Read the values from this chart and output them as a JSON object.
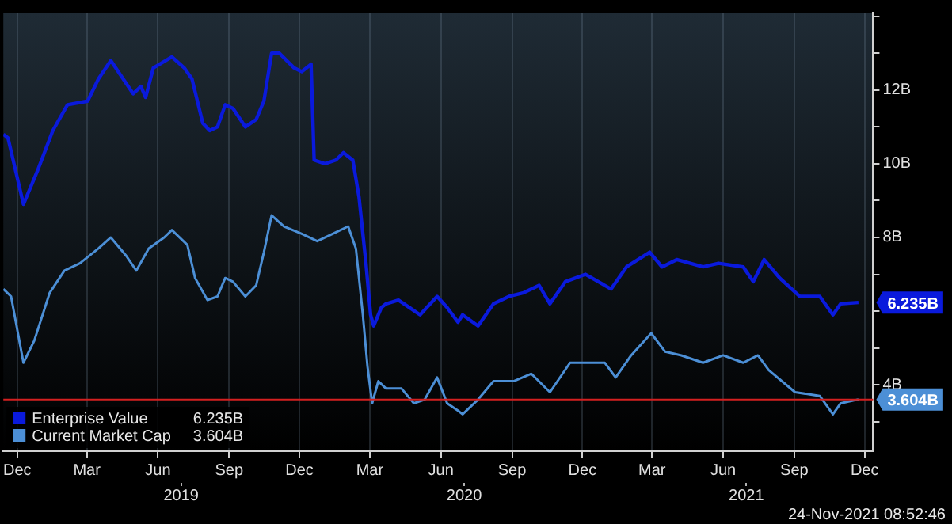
{
  "chart_data": {
    "type": "line",
    "xlim": [
      "2018-11-13",
      "2021-12-12"
    ],
    "xticks": [
      {
        "value": "2018-12-01",
        "label": "Dec"
      },
      {
        "value": "2019-03-01",
        "label": "Mar"
      },
      {
        "value": "2019-06-01",
        "label": "Jun"
      },
      {
        "value": "2019-09-01",
        "label": "Sep"
      },
      {
        "value": "2019-12-01",
        "label": "Dec"
      },
      {
        "value": "2020-03-01",
        "label": "Mar"
      },
      {
        "value": "2020-06-01",
        "label": "Jun"
      },
      {
        "value": "2020-09-01",
        "label": "Sep"
      },
      {
        "value": "2020-12-01",
        "label": "Dec"
      },
      {
        "value": "2021-03-01",
        "label": "Mar"
      },
      {
        "value": "2021-06-01",
        "label": "Jun"
      },
      {
        "value": "2021-09-01",
        "label": "Sep"
      },
      {
        "value": "2021-12-01",
        "label": "Dec"
      }
    ],
    "x2lim": [
      "2018-11-13",
      "2021-12-12"
    ],
    "x2ticks": [
      {
        "value": "2019-07-01",
        "label": "2019"
      },
      {
        "value": "2020-07-01",
        "label": "2020"
      },
      {
        "value": "2021-07-01",
        "label": "2021"
      }
    ],
    "ylim": [
      2.2,
      14.1
    ],
    "yticks": [
      {
        "value": 3,
        "label": null
      },
      {
        "value": 4,
        "label": "4B"
      },
      {
        "value": 5,
        "label": null
      },
      {
        "value": 6,
        "label": null
      },
      {
        "value": 7,
        "label": null
      },
      {
        "value": 8,
        "label": "8B"
      },
      {
        "value": 9,
        "label": null
      },
      {
        "value": 10,
        "label": "10B"
      },
      {
        "value": 11,
        "label": null
      },
      {
        "value": 12,
        "label": "12B"
      },
      {
        "value": 13,
        "label": null
      },
      {
        "value": 14,
        "label": null
      }
    ],
    "grid": "x",
    "legend": "bottom left",
    "marker": "none",
    "ref_lines": [
      {
        "axis": "y",
        "value": 3.604,
        "color": "#d42020"
      }
    ],
    "annotations": [
      "24-Nov-2021 08:52:46"
    ],
    "series": [
      {
        "name": "Enterprise Value",
        "color": "#0a1adc",
        "x": [
          "2018-11-13",
          "2018-11-19",
          "2018-12-09",
          "2018-12-27",
          "2019-01-16",
          "2019-02-04",
          "2019-03-02",
          "2019-03-16",
          "2019-04-01",
          "2019-04-17",
          "2019-04-30",
          "2019-05-10",
          "2019-05-16",
          "2019-05-26",
          "2019-06-19",
          "2019-07-05",
          "2019-07-15",
          "2019-07-29",
          "2019-08-07",
          "2019-08-17",
          "2019-08-27",
          "2019-09-06",
          "2019-09-22",
          "2019-10-06",
          "2019-10-16",
          "2019-10-26",
          "2019-11-05",
          "2019-11-24",
          "2019-12-04",
          "2019-12-16",
          "2019-12-20",
          "2020-01-03",
          "2020-01-17",
          "2020-01-27",
          "2020-02-08",
          "2020-02-16",
          "2020-02-25",
          "2020-03-02",
          "2020-03-06",
          "2020-03-16",
          "2020-03-22",
          "2020-04-07",
          "2020-04-21",
          "2020-05-05",
          "2020-05-27",
          "2020-06-09",
          "2020-06-23",
          "2020-06-29",
          "2020-07-19",
          "2020-08-08",
          "2020-08-28",
          "2020-09-16",
          "2020-10-06",
          "2020-10-20",
          "2020-11-09",
          "2020-12-05",
          "2021-01-07",
          "2021-01-27",
          "2021-02-26",
          "2021-03-14",
          "2021-04-02",
          "2021-05-06",
          "2021-05-26",
          "2021-06-27",
          "2021-07-10",
          "2021-07-24",
          "2021-08-13",
          "2021-09-08",
          "2021-10-04",
          "2021-10-21",
          "2021-10-31",
          "2021-11-23"
        ],
        "values": [
          10.8,
          10.7,
          8.9,
          9.8,
          10.9,
          11.6,
          11.7,
          12.3,
          12.8,
          12.3,
          11.9,
          12.1,
          11.8,
          12.6,
          12.9,
          12.6,
          12.3,
          11.1,
          10.9,
          11.0,
          11.6,
          11.5,
          11.0,
          11.2,
          11.7,
          13.0,
          13.0,
          12.6,
          12.5,
          12.7,
          10.1,
          10.0,
          10.1,
          10.3,
          10.1,
          9.1,
          7.3,
          5.9,
          5.6,
          6.1,
          6.2,
          6.3,
          6.1,
          5.9,
          6.4,
          6.1,
          5.7,
          5.9,
          5.6,
          6.2,
          6.4,
          6.5,
          6.7,
          6.2,
          6.8,
          7.0,
          6.6,
          7.2,
          7.6,
          7.2,
          7.4,
          7.2,
          7.3,
          7.2,
          6.8,
          7.4,
          6.9,
          6.4,
          6.4,
          5.9,
          6.2,
          6.235
        ],
        "value_labels": [
          null,
          null,
          null,
          null,
          null,
          null,
          null,
          null,
          null,
          null,
          null,
          null,
          null,
          null,
          null,
          null,
          null,
          null,
          null,
          null,
          null,
          null,
          null,
          null,
          null,
          null,
          null,
          null,
          null,
          null,
          null,
          null,
          null,
          null,
          null,
          null,
          null,
          null,
          null,
          null,
          null,
          null,
          null,
          null,
          null,
          null,
          null,
          null,
          null,
          null,
          null,
          null,
          null,
          null,
          null,
          null,
          null,
          null,
          null,
          null,
          null,
          null,
          null,
          null,
          null,
          null,
          null,
          null,
          null,
          null,
          null,
          "6.235B"
        ]
      },
      {
        "name": "Current Market Cap",
        "color": "#4c8fd6",
        "x": [
          "2018-11-13",
          "2018-11-23",
          "2018-12-09",
          "2018-12-23",
          "2019-01-12",
          "2019-01-31",
          "2019-02-20",
          "2019-03-16",
          "2019-04-01",
          "2019-04-21",
          "2019-05-04",
          "2019-05-20",
          "2019-06-09",
          "2019-06-19",
          "2019-07-09",
          "2019-07-19",
          "2019-08-04",
          "2019-08-17",
          "2019-08-27",
          "2019-09-06",
          "2019-09-22",
          "2019-10-06",
          "2019-10-16",
          "2019-10-26",
          "2019-11-11",
          "2019-12-04",
          "2019-12-24",
          "2020-01-13",
          "2020-02-02",
          "2020-02-12",
          "2020-02-21",
          "2020-02-27",
          "2020-03-04",
          "2020-03-12",
          "2020-03-22",
          "2020-04-11",
          "2020-04-27",
          "2020-05-11",
          "2020-05-27",
          "2020-06-09",
          "2020-06-23",
          "2020-06-29",
          "2020-07-19",
          "2020-08-08",
          "2020-09-03",
          "2020-09-26",
          "2020-10-20",
          "2020-11-15",
          "2020-12-11",
          "2020-12-30",
          "2021-01-13",
          "2021-02-02",
          "2021-02-28",
          "2021-03-18",
          "2021-04-08",
          "2021-05-06",
          "2021-06-01",
          "2021-06-27",
          "2021-07-16",
          "2021-07-30",
          "2021-09-02",
          "2021-10-04",
          "2021-10-21",
          "2021-10-31",
          "2021-11-23"
        ],
        "values": [
          6.6,
          6.4,
          4.6,
          5.2,
          6.5,
          7.1,
          7.3,
          7.7,
          8.0,
          7.5,
          7.1,
          7.7,
          8.0,
          8.2,
          7.8,
          6.9,
          6.3,
          6.4,
          6.9,
          6.8,
          6.4,
          6.7,
          7.6,
          8.6,
          8.3,
          8.1,
          7.9,
          8.1,
          8.3,
          7.7,
          5.9,
          4.5,
          3.5,
          4.1,
          3.9,
          3.9,
          3.5,
          3.6,
          4.2,
          3.5,
          3.3,
          3.2,
          3.6,
          4.1,
          4.1,
          4.3,
          3.8,
          4.6,
          4.6,
          4.6,
          4.2,
          4.8,
          5.4,
          4.9,
          4.8,
          4.6,
          4.8,
          4.6,
          4.8,
          4.4,
          3.8,
          3.7,
          3.2,
          3.5,
          3.604
        ],
        "value_labels": [
          null,
          null,
          null,
          null,
          null,
          null,
          null,
          null,
          null,
          null,
          null,
          null,
          null,
          null,
          null,
          null,
          null,
          null,
          null,
          null,
          null,
          null,
          null,
          null,
          null,
          null,
          null,
          null,
          null,
          null,
          null,
          null,
          null,
          null,
          null,
          null,
          null,
          null,
          null,
          null,
          null,
          null,
          null,
          null,
          null,
          null,
          null,
          null,
          null,
          null,
          null,
          null,
          null,
          null,
          null,
          null,
          null,
          null,
          null,
          null,
          null,
          null,
          null,
          null,
          "3.604B"
        ]
      }
    ]
  }
}
